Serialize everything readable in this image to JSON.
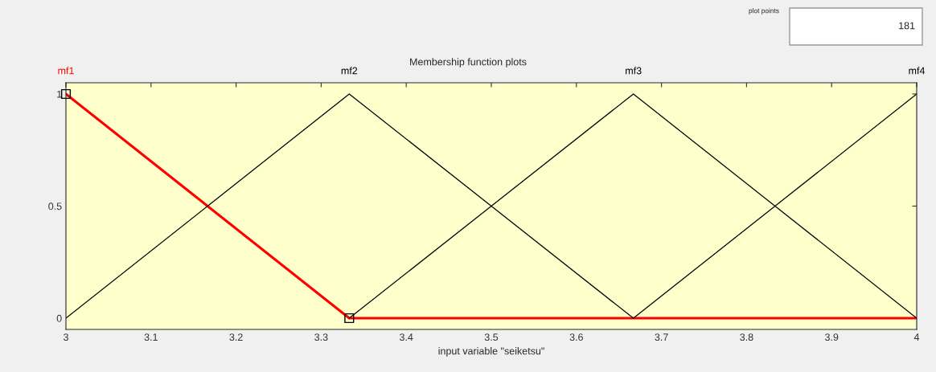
{
  "chart_data": {
    "type": "line",
    "title": "Membership function plots",
    "xlabel": "input variable \"seiketsu\"",
    "xlim": [
      3,
      4
    ],
    "xticks": [
      3,
      3.1,
      3.2,
      3.3,
      3.4,
      3.5,
      3.6,
      3.7,
      3.8,
      3.9,
      4
    ],
    "ylim": [
      -0.05,
      1.05
    ],
    "yticks": [
      0,
      0.5,
      1
    ],
    "grid": false,
    "legend": false,
    "annotations": [
      "plot points",
      "181"
    ],
    "series": [
      {
        "name": "mf1",
        "color": "#ff0000",
        "x": [
          3,
          3.333,
          4
        ],
        "values": [
          1,
          0,
          0
        ],
        "line_style": "solid"
      },
      {
        "name": "mf2",
        "color": "#000000",
        "x": [
          3,
          3.333,
          3.667
        ],
        "values": [
          0,
          1,
          0
        ],
        "line_style": "solid"
      },
      {
        "name": "mf3",
        "color": "#000000",
        "x": [
          3.333,
          3.667,
          4
        ],
        "values": [
          0,
          1,
          0
        ],
        "line_style": "solid"
      },
      {
        "name": "mf4",
        "color": "#000000",
        "x": [
          3.667,
          4
        ],
        "values": [
          0,
          1
        ],
        "line_style": "solid"
      },
      {
        "type": "scatter",
        "color": "#000000",
        "x": [
          3,
          3.333
        ],
        "values": [
          1,
          0
        ],
        "marker": "square"
      }
    ]
  }
}
